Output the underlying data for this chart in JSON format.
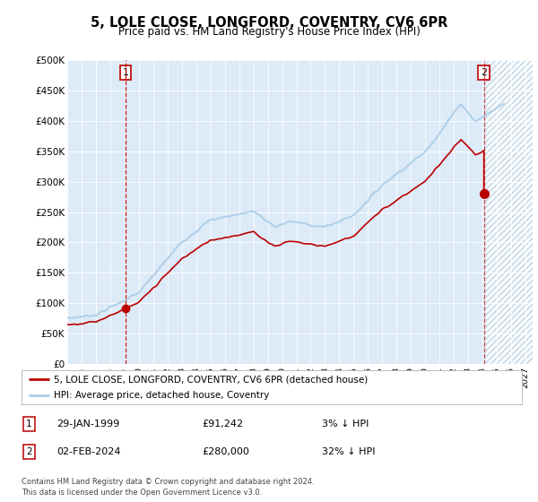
{
  "title": "5, LOLE CLOSE, LONGFORD, COVENTRY, CV6 6PR",
  "subtitle": "Price paid vs. HM Land Registry's House Price Index (HPI)",
  "ylim": [
    0,
    500000
  ],
  "yticks": [
    0,
    50000,
    100000,
    150000,
    200000,
    250000,
    300000,
    350000,
    400000,
    450000,
    500000
  ],
  "ytick_labels": [
    "£0",
    "£50K",
    "£100K",
    "£150K",
    "£200K",
    "£250K",
    "£300K",
    "£350K",
    "£400K",
    "£450K",
    "£500K"
  ],
  "hpi_color": "#a8cce8",
  "price_color": "#bb0000",
  "marker1_date_f": 1999.08,
  "marker1_price": 91242,
  "marker2_date_f": 2024.09,
  "marker2_price": 280000,
  "plot_bg": "#ddeaf7",
  "hatch_color": "#b8cfe0",
  "legend_label_price": "5, LOLE CLOSE, LONGFORD, COVENTRY, CV6 6PR (detached house)",
  "legend_label_hpi": "HPI: Average price, detached house, Coventry",
  "note1_date": "29-JAN-1999",
  "note1_price": "£91,242",
  "note1_hpi": "3% ↓ HPI",
  "note2_date": "02-FEB-2024",
  "note2_price": "£280,000",
  "note2_hpi": "32% ↓ HPI",
  "footer": "Contains HM Land Registry data © Crown copyright and database right 2024.\nThis data is licensed under the Open Government Licence v3.0.",
  "xmin": 1995.0,
  "xmax": 2027.5,
  "future_start": 2024.25
}
